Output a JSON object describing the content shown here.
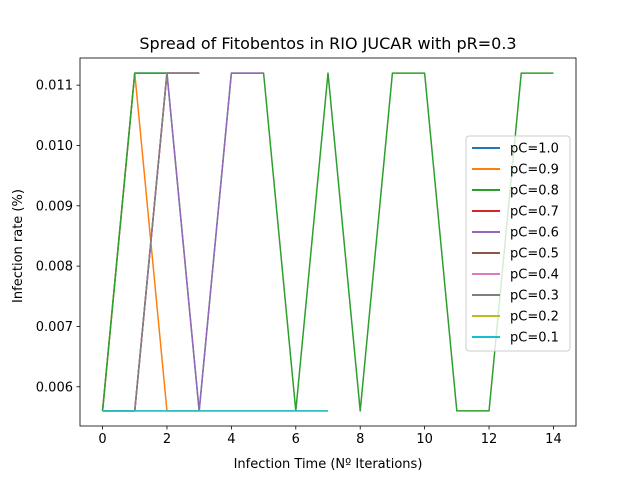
{
  "chart_data": {
    "type": "line",
    "title": "Spread of Fitobentos in RIO JUCAR with pR=0.3",
    "xlabel": "Infection Time (Nº Iterations)",
    "ylabel": "Infection rate (%)",
    "xlim": [
      -0.7,
      14.7
    ],
    "ylim": [
      0.00535,
      0.01145
    ],
    "xticks": [
      0,
      2,
      4,
      6,
      8,
      10,
      12,
      14
    ],
    "yticks": [
      0.006,
      0.007,
      0.008,
      0.009,
      0.01,
      0.011
    ],
    "ytick_labels": [
      "0.006",
      "0.007",
      "0.008",
      "0.009",
      "0.010",
      "0.011"
    ],
    "legend_position": "center-right",
    "series": [
      {
        "name": "pC=1.0",
        "color": "#1f77b4",
        "x": [
          0,
          1,
          2,
          3
        ],
        "y": [
          0.0056,
          0.0112,
          0.0112,
          0.0112
        ]
      },
      {
        "name": "pC=0.9",
        "color": "#ff7f0e",
        "x": [
          0,
          1,
          2,
          3
        ],
        "y": [
          0.0056,
          0.0112,
          0.0056,
          0.0056
        ]
      },
      {
        "name": "pC=0.8",
        "color": "#2ca02c",
        "x": [
          0,
          1,
          2,
          3,
          4,
          5,
          6,
          7,
          8,
          9,
          10,
          11,
          12,
          13,
          14
        ],
        "y": [
          0.0056,
          0.0112,
          0.0112,
          0.0056,
          0.0112,
          0.0112,
          0.0056,
          0.0112,
          0.0056,
          0.0112,
          0.0112,
          0.0056,
          0.0056,
          0.0112,
          0.0112
        ]
      },
      {
        "name": "pC=0.7",
        "color": "#d62728",
        "x": [
          0,
          1,
          2,
          3
        ],
        "y": [
          0.0056,
          0.0056,
          0.0112,
          0.0112
        ]
      },
      {
        "name": "pC=0.6",
        "color": "#9467bd",
        "x": [
          0,
          1,
          2,
          3,
          4,
          5
        ],
        "y": [
          0.0056,
          0.0056,
          0.0112,
          0.0056,
          0.0112,
          0.0112
        ]
      },
      {
        "name": "pC=0.5",
        "color": "#8c564b",
        "x": [
          0,
          1,
          2,
          3
        ],
        "y": [
          0.0056,
          0.0056,
          0.0112,
          0.0112
        ]
      },
      {
        "name": "pC=0.4",
        "color": "#e377c2",
        "x": [
          0,
          1,
          2,
          3
        ],
        "y": [
          0.0056,
          0.0056,
          0.0112,
          0.0112
        ]
      },
      {
        "name": "pC=0.3",
        "color": "#7f7f7f",
        "x": [
          0,
          1,
          2,
          3
        ],
        "y": [
          0.0056,
          0.0056,
          0.0112,
          0.0112
        ]
      },
      {
        "name": "pC=0.2",
        "color": "#bcbd22",
        "x": [
          0,
          1,
          2,
          3,
          4,
          5,
          6,
          7
        ],
        "y": [
          0.0056,
          0.0056,
          0.0056,
          0.0056,
          0.0056,
          0.0056,
          0.0056,
          0.0056
        ]
      },
      {
        "name": "pC=0.1",
        "color": "#17becf",
        "x": [
          0,
          1,
          2,
          3,
          4,
          5,
          6,
          7
        ],
        "y": [
          0.0056,
          0.0056,
          0.0056,
          0.0056,
          0.0056,
          0.0056,
          0.0056,
          0.0056
        ]
      }
    ]
  }
}
